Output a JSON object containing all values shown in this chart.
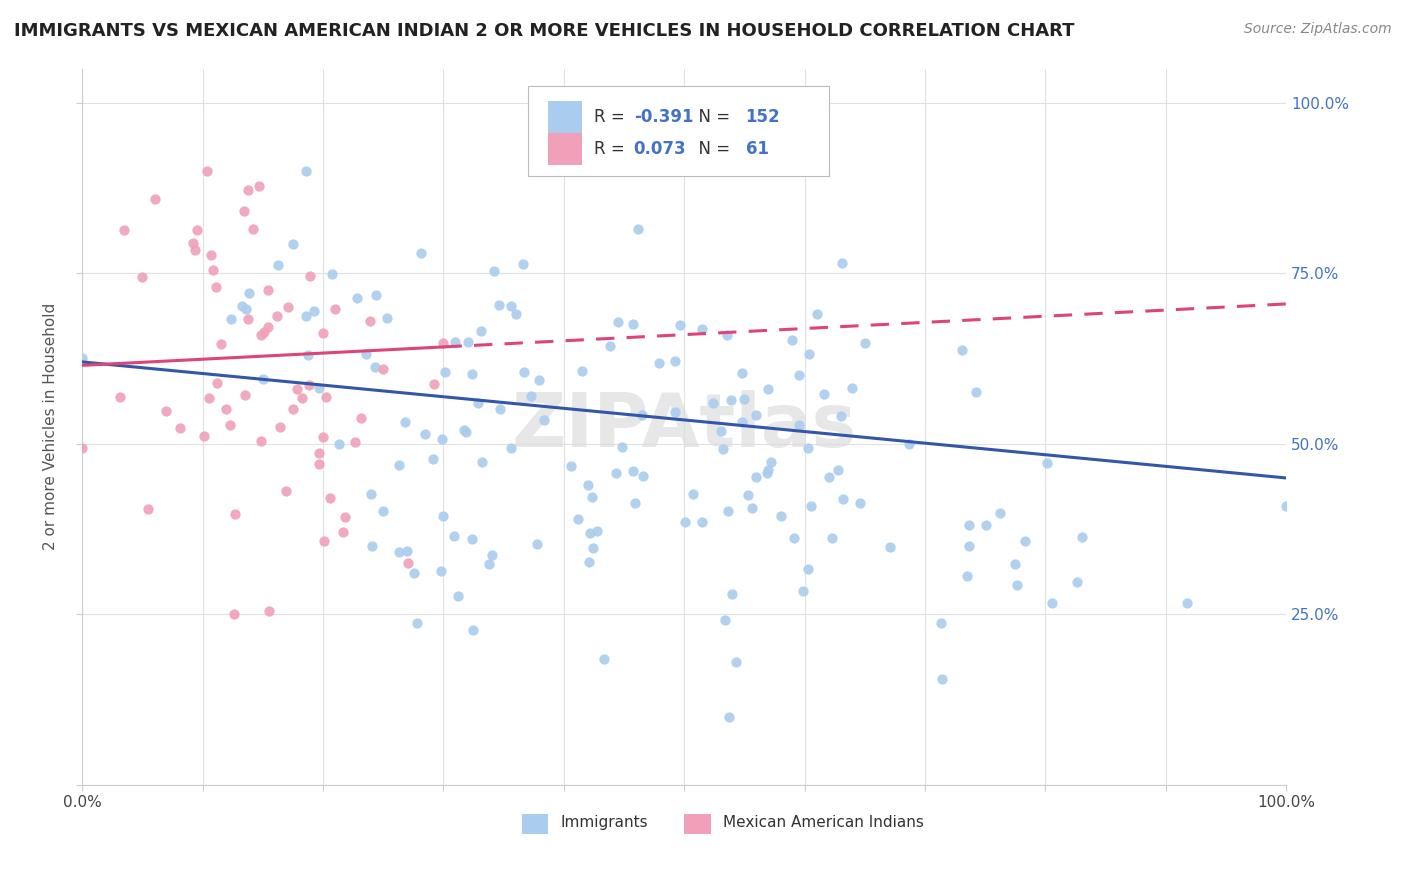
{
  "title": "IMMIGRANTS VS MEXICAN AMERICAN INDIAN 2 OR MORE VEHICLES IN HOUSEHOLD CORRELATION CHART",
  "source": "Source: ZipAtlas.com",
  "ylabel": "2 or more Vehicles in Household",
  "bg_color": "#ffffff",
  "plot_bg_color": "#ffffff",
  "grid_color": "#e0e0e0",
  "immigrants_color": "#aaccee",
  "mexican_color": "#f0a0b8",
  "immigrants_line_color": "#3355aa",
  "mexican_line_color": "#dd4477",
  "legend_R1": "-0.391",
  "legend_N1": "152",
  "legend_R2": "0.073",
  "legend_N2": "61",
  "immigrants_n": 152,
  "mexican_n": 61,
  "immigrants_R": -0.391,
  "mexican_R": 0.073,
  "xmin": 0.0,
  "xmax": 1.0,
  "ymin": 0.0,
  "ymax": 1.05
}
